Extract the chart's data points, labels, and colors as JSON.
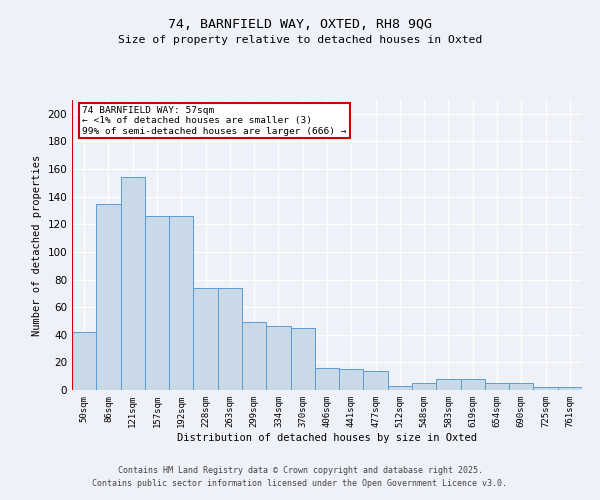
{
  "title1": "74, BARNFIELD WAY, OXTED, RH8 9QG",
  "title2": "Size of property relative to detached houses in Oxted",
  "xlabel": "Distribution of detached houses by size in Oxted",
  "ylabel": "Number of detached properties",
  "bar_values": [
    42,
    135,
    154,
    126,
    126,
    74,
    74,
    49,
    46,
    45,
    16,
    15,
    14,
    3,
    5,
    8,
    8,
    5,
    5,
    2,
    2
  ],
  "categories": [
    "50sqm",
    "86sqm",
    "121sqm",
    "157sqm",
    "192sqm",
    "228sqm",
    "263sqm",
    "299sqm",
    "334sqm",
    "370sqm",
    "406sqm",
    "441sqm",
    "477sqm",
    "512sqm",
    "548sqm",
    "583sqm",
    "619sqm",
    "654sqm",
    "690sqm",
    "725sqm",
    "761sqm"
  ],
  "bar_color": "#c9d9e8",
  "bar_edge_color": "#5b9bd5",
  "vline_color": "#cc0000",
  "annotation_box_color": "#cc0000",
  "annotation_text1": "74 BARNFIELD WAY: 57sqm",
  "annotation_text2": "← <1% of detached houses are smaller (3)",
  "annotation_text3": "99% of semi-detached houses are larger (666) →",
  "ylim": [
    0,
    210
  ],
  "yticks": [
    0,
    20,
    40,
    60,
    80,
    100,
    120,
    140,
    160,
    180,
    200
  ],
  "footer1": "Contains HM Land Registry data © Crown copyright and database right 2025.",
  "footer2": "Contains public sector information licensed under the Open Government Licence v3.0.",
  "background_color": "#eef2f8"
}
